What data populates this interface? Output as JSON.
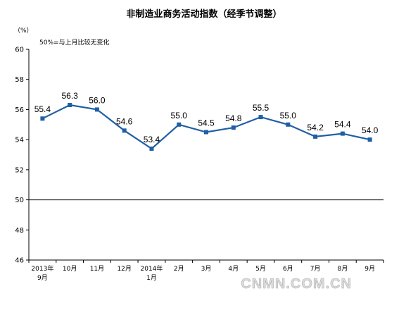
{
  "chart_data": {
    "type": "line",
    "title": "非制造业商务活动指数（经季节调整）",
    "ylabel": "（%）",
    "note": "50%=与上月比较无变化",
    "ylim": [
      46,
      60
    ],
    "yticks": [
      46,
      48,
      50,
      52,
      54,
      56,
      58,
      60
    ],
    "reference_line": 50,
    "categories": [
      [
        "2013年",
        "9月"
      ],
      [
        "10月"
      ],
      [
        "11月"
      ],
      [
        "12月"
      ],
      [
        "2014年",
        "1月"
      ],
      [
        "2月"
      ],
      [
        "3月"
      ],
      [
        "4月"
      ],
      [
        "5月"
      ],
      [
        "6月"
      ],
      [
        "7月"
      ],
      [
        "8月"
      ],
      [
        "9月"
      ]
    ],
    "series": [
      {
        "values": [
          55.4,
          56.3,
          56.0,
          54.6,
          53.4,
          55.0,
          54.5,
          54.8,
          55.5,
          55.0,
          54.2,
          54.4,
          54.0
        ],
        "labels": [
          "55.4",
          "56.3",
          "56.0",
          "54.6",
          "53.4",
          "55.0",
          "54.5",
          "54.8",
          "55.5",
          "55.0",
          "54.2",
          "54.4",
          "54.0"
        ],
        "color": "#1f5fa5"
      }
    ],
    "grid": false
  },
  "watermark": "CNMN.COM.CN"
}
